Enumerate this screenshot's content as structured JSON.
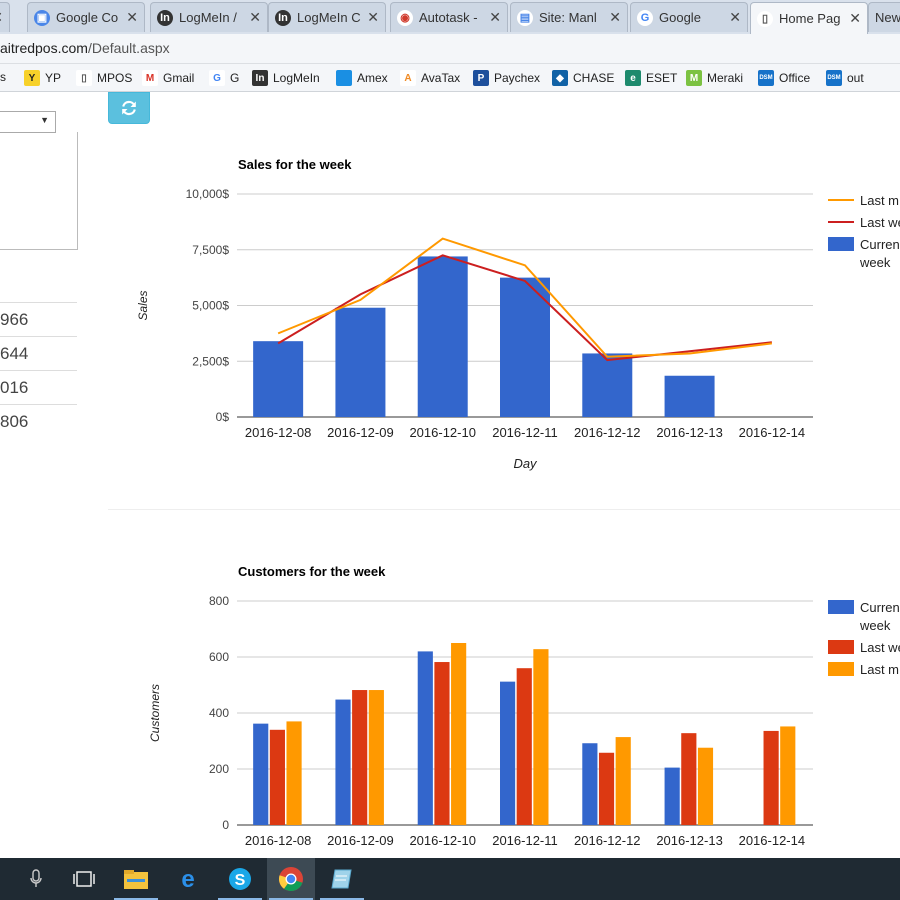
{
  "browser": {
    "tabs": [
      {
        "label": "",
        "icon": "close-icon"
      },
      {
        "label": "Google Co",
        "icon": "contacts-icon"
      },
      {
        "label": "LogMeIn /",
        "icon": "logmein-icon"
      },
      {
        "label": "LogMeIn C",
        "icon": "logmein-icon"
      },
      {
        "label": "Autotask -",
        "icon": "autotask-icon"
      },
      {
        "label": "Site: Manl",
        "icon": "site-icon"
      },
      {
        "label": "Google",
        "icon": "google-icon"
      },
      {
        "label": "Home Pag",
        "icon": "page-icon"
      },
      {
        "label": "New",
        "icon": ""
      }
    ],
    "url_host": "aitredpos.com",
    "url_path": "/Default.aspx",
    "bookmarks": [
      {
        "label": "rs",
        "icon": ""
      },
      {
        "label": "YP",
        "icon": "yp-icon"
      },
      {
        "label": "MPOS",
        "icon": "page-icon"
      },
      {
        "label": "Gmail",
        "icon": "gmail-icon"
      },
      {
        "label": "G",
        "icon": "google-icon"
      },
      {
        "label": "LogMeIn",
        "icon": "logmein-icon"
      },
      {
        "label": "Amex",
        "icon": "amex-icon"
      },
      {
        "label": "AvaTax",
        "icon": "avatax-icon"
      },
      {
        "label": "Paychex",
        "icon": "paychex-icon"
      },
      {
        "label": "CHASE",
        "icon": "chase-icon"
      },
      {
        "label": "ESET",
        "icon": "eset-icon"
      },
      {
        "label": "Meraki",
        "icon": "meraki-icon"
      },
      {
        "label": "Office",
        "icon": "dsm-icon"
      },
      {
        "label": "out",
        "icon": "dsm-icon"
      }
    ]
  },
  "sidebar": {
    "rows": [
      "966",
      "644",
      "016",
      "806"
    ]
  },
  "colors": {
    "current_week": "#3366cc",
    "last_week": "#dc3912",
    "last_month": "#ff9900",
    "refresh_button": "#5bc0de"
  },
  "chart_data": [
    {
      "type": "bar",
      "title": "Sales for the week",
      "xlabel": "Day",
      "ylabel": "Sales",
      "ylim": [
        0,
        10000
      ],
      "yticks": [
        "0$",
        "2,500$",
        "5,000$",
        "7,500$",
        "10,000$"
      ],
      "categories": [
        "2016-12-08",
        "2016-12-09",
        "2016-12-10",
        "2016-12-11",
        "2016-12-12",
        "2016-12-13",
        "2016-12-14"
      ],
      "series": [
        {
          "name": "Current week",
          "kind": "bar",
          "color": "#3366cc",
          "values": [
            3400,
            4900,
            7200,
            6250,
            2850,
            1850,
            null
          ]
        },
        {
          "name": "Last week",
          "kind": "line",
          "color": "#cc1f1f",
          "values": [
            3300,
            5500,
            7250,
            6100,
            2550,
            2950,
            3350
          ]
        },
        {
          "name": "Last month",
          "kind": "line",
          "color": "#ff9900",
          "values": [
            3750,
            5250,
            8000,
            6800,
            2700,
            2850,
            3300
          ]
        }
      ],
      "legend": [
        "Last m",
        "Last we",
        "Curren\nweek"
      ],
      "legend_position": "right",
      "grid": true
    },
    {
      "type": "bar",
      "title": "Customers for the week",
      "xlabel": "",
      "ylabel": "Customers",
      "ylim": [
        0,
        800
      ],
      "yticks": [
        "0",
        "200",
        "400",
        "600",
        "800"
      ],
      "categories": [
        "2016-12-08",
        "2016-12-09",
        "2016-12-10",
        "2016-12-11",
        "2016-12-12",
        "2016-12-13",
        "2016-12-14"
      ],
      "series": [
        {
          "name": "Current week",
          "color": "#3366cc",
          "values": [
            362,
            448,
            620,
            512,
            292,
            205,
            null
          ]
        },
        {
          "name": "Last week",
          "color": "#dc3912",
          "values": [
            340,
            482,
            582,
            560,
            258,
            328,
            336
          ]
        },
        {
          "name": "Last month",
          "color": "#ff9900",
          "values": [
            370,
            482,
            650,
            628,
            314,
            276,
            352
          ]
        }
      ],
      "legend": [
        "Curren\nweek",
        "Last we",
        "Last m"
      ],
      "legend_position": "right",
      "grid": true
    }
  ]
}
